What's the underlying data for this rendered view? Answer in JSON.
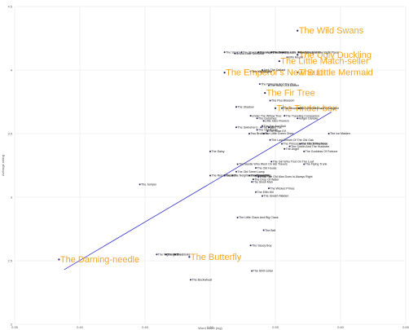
{
  "chart_data": {
    "type": "scatter",
    "title": "",
    "xlabel": "Word count (log)",
    "ylabel": "Average rating",
    "xlim": [
      0.35,
      0.65
    ],
    "ylim": [
      2.0,
      4.5
    ],
    "x_ticks": [
      "0.35",
      "0.40",
      "0.45",
      "0.50",
      "0.55",
      "0.60",
      "0.65"
    ],
    "y_ticks": [
      "2",
      "2.5",
      "3",
      "3.5",
      "4",
      "4.5"
    ],
    "grid": true,
    "colors": {
      "point": "#222255",
      "trendline": "#3333cc",
      "highlight": "#f5a623",
      "grid": "#e8e8e8"
    },
    "trendline": {
      "x": [
        0.388,
        0.593
      ],
      "y": [
        2.43,
        3.67
      ]
    },
    "points": [
      {
        "label": "The Wild Swans",
        "x": 0.567,
        "y": 4.31,
        "highlight": true
      },
      {
        "label": "The Ugly Duckling",
        "x": 0.567,
        "y": 4.12,
        "highlight": true
      },
      {
        "label": "The Little Match-seller",
        "x": 0.553,
        "y": 4.07,
        "highlight": true
      },
      {
        "label": "The Emperor's New Suit",
        "x": 0.511,
        "y": 3.98,
        "highlight": true
      },
      {
        "label": "The Little Mermaid",
        "x": 0.567,
        "y": 3.98,
        "highlight": true
      },
      {
        "label": "The Fir Tree",
        "x": 0.542,
        "y": 3.82,
        "highlight": true
      },
      {
        "label": "The Tinder-box",
        "x": 0.55,
        "y": 3.7,
        "highlight": true
      },
      {
        "label": "The Darning-needle",
        "x": 0.384,
        "y": 2.51,
        "highlight": true
      },
      {
        "label": "The Butterfly",
        "x": 0.484,
        "y": 2.53,
        "highlight": true
      },
      {
        "label": "Everything In The Right Place",
        "x": 0.568,
        "y": 4.14
      },
      {
        "label": "The Storks",
        "x": 0.511,
        "y": 4.14
      },
      {
        "label": "The Shepherdess And The Sweep",
        "x": 0.524,
        "y": 4.14
      },
      {
        "label": "The Snow Queen",
        "x": 0.547,
        "y": 4.14
      },
      {
        "label": "The Little Elder-Tree Mother",
        "x": 0.556,
        "y": 4.14
      },
      {
        "label": "The Happy Family",
        "x": 0.537,
        "y": 4.14
      },
      {
        "label": "Ib And Little Christina",
        "x": 0.519,
        "y": 4.13
      },
      {
        "label": "Elfin Mount",
        "x": 0.559,
        "y": 4.1
      },
      {
        "label": "Jack The Dullard",
        "x": 0.54,
        "y": 4.0
      },
      {
        "label": "The Nightingale",
        "x": 0.531,
        "y": 3.99
      },
      {
        "label": "The Princess And The Pea",
        "x": 0.538,
        "y": 3.89
      },
      {
        "label": "The Story Of A Mother",
        "x": 0.545,
        "y": 3.88
      },
      {
        "label": "The Pea Blossom",
        "x": 0.546,
        "y": 3.76
      },
      {
        "label": "The Shadow",
        "x": 0.52,
        "y": 3.71
      },
      {
        "label": "The Snowman",
        "x": 0.555,
        "y": 3.7
      },
      {
        "label": "The Little Mermaid's Daughter",
        "x": 0.568,
        "y": 3.7
      },
      {
        "label": "Under The Willow Tree",
        "x": 0.531,
        "y": 3.64
      },
      {
        "label": "The Traveling Companion",
        "x": 0.557,
        "y": 3.64
      },
      {
        "label": "The Goloshes",
        "x": 0.536,
        "y": 3.62
      },
      {
        "label": "Holger Danske",
        "x": 0.567,
        "y": 3.62
      },
      {
        "label": "Little Ida's Flowers",
        "x": 0.541,
        "y": 3.6
      },
      {
        "label": "The Swineherd",
        "x": 0.52,
        "y": 3.55
      },
      {
        "label": "The Top And Ball",
        "x": 0.54,
        "y": 3.56
      },
      {
        "label": "The Old House",
        "x": 0.536,
        "y": 3.53
      },
      {
        "label": "The Flax",
        "x": 0.539,
        "y": 3.55
      },
      {
        "label": "Little Tuk",
        "x": 0.545,
        "y": 3.55
      },
      {
        "label": "The Rose Elf",
        "x": 0.544,
        "y": 3.52
      },
      {
        "label": "The Little Green Ones",
        "x": 0.541,
        "y": 3.5
      },
      {
        "label": "Two Brothers",
        "x": 0.53,
        "y": 3.5
      },
      {
        "label": "The Last Dream Of The Old Oak",
        "x": 0.546,
        "y": 3.45
      },
      {
        "label": "The Princess And The Swineherd",
        "x": 0.555,
        "y": 3.42
      },
      {
        "label": "The Elf Of The Rose",
        "x": 0.569,
        "y": 3.42
      },
      {
        "label": "The Goblin And The Huckster",
        "x": 0.561,
        "y": 3.4
      },
      {
        "label": "The Angel",
        "x": 0.557,
        "y": 3.38
      },
      {
        "label": "The Ice Maiden",
        "x": 0.591,
        "y": 3.5
      },
      {
        "label": "The Daisy",
        "x": 0.5,
        "y": 3.36
      },
      {
        "label": "The Goddess Of Fortune",
        "x": 0.572,
        "y": 3.36
      },
      {
        "label": "The Girl Who Trod On The Loaf",
        "x": 0.547,
        "y": 3.28
      },
      {
        "label": "The Flying Trunk",
        "x": 0.572,
        "y": 3.26
      },
      {
        "label": "The Beetle Who Went On His Travels",
        "x": 0.521,
        "y": 3.26
      },
      {
        "label": "The Old House",
        "x": 0.535,
        "y": 3.23
      },
      {
        "label": "The Old Street Lamp",
        "x": 0.52,
        "y": 3.2
      },
      {
        "label": "The Red Shoes",
        "x": 0.5,
        "y": 3.17
      },
      {
        "label": "The Bell",
        "x": 0.511,
        "y": 3.17
      },
      {
        "label": "The Neighbouring Families",
        "x": 0.517,
        "y": 3.17
      },
      {
        "label": "The Money Pig",
        "x": 0.53,
        "y": 3.17
      },
      {
        "label": "Something",
        "x": 0.535,
        "y": 3.17
      },
      {
        "label": "What The Old Man Does Is Always Right",
        "x": 0.537,
        "y": 3.16
      },
      {
        "label": "The Drop Of Water",
        "x": 0.533,
        "y": 3.14
      },
      {
        "label": "The Snow Man",
        "x": 0.532,
        "y": 3.12
      },
      {
        "label": "The Jumper",
        "x": 0.446,
        "y": 3.1
      },
      {
        "label": "The Wicked Prince",
        "x": 0.545,
        "y": 3.07
      },
      {
        "label": "The Elfin Hill",
        "x": 0.535,
        "y": 3.04
      },
      {
        "label": "The Jewish Maiden",
        "x": 0.54,
        "y": 3.01
      },
      {
        "label": "The Little Claus And Big Claus",
        "x": 0.521,
        "y": 2.84
      },
      {
        "label": "The Bell",
        "x": 0.541,
        "y": 2.74
      },
      {
        "label": "The Saucy Boy",
        "x": 0.531,
        "y": 2.62
      },
      {
        "label": "The Nightingale",
        "x": 0.459,
        "y": 2.55
      },
      {
        "label": "The Fir Tree",
        "x": 0.466,
        "y": 2.55
      },
      {
        "label": "The Storks",
        "x": 0.473,
        "y": 2.55
      },
      {
        "label": "The Shirt-collar",
        "x": 0.532,
        "y": 2.42
      },
      {
        "label": "The Buckwheat",
        "x": 0.485,
        "y": 2.35
      }
    ]
  }
}
